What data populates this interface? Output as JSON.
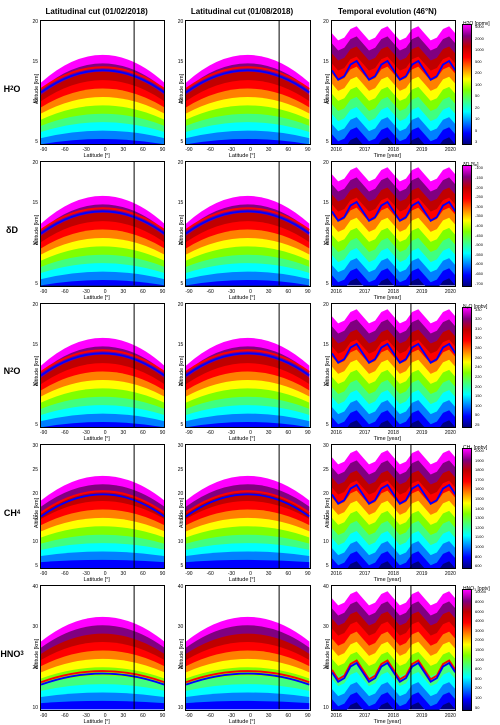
{
  "column_headers": [
    "Latitudinal cut (01/02/2018)",
    "Latitudinal cut (01/08/2018)",
    "Temporal evolution (46°N)"
  ],
  "row_labels": [
    "H₂O",
    "δD",
    "N₂O",
    "CH₄",
    "HNO₃"
  ],
  "colorbars": [
    {
      "label": "H2O [ppmv]",
      "ticks": [
        "4000",
        "2000",
        "1000",
        "500",
        "200",
        "100",
        "50",
        "20",
        "10",
        "5",
        "3"
      ]
    },
    {
      "label": "δD [‰]",
      "ticks": [
        "-100",
        "-150",
        "-200",
        "-250",
        "-300",
        "-350",
        "-400",
        "-450",
        "-500",
        "-550",
        "-600",
        "-650",
        "-700"
      ]
    },
    {
      "label": "N₂O [ppbv]",
      "ticks": [
        "330",
        "320",
        "310",
        "300",
        "280",
        "260",
        "240",
        "220",
        "200",
        "150",
        "100",
        "50",
        "25"
      ]
    },
    {
      "label": "CH₄ [ppbv]",
      "ticks": [
        "2000",
        "1900",
        "1800",
        "1700",
        "1600",
        "1500",
        "1400",
        "1300",
        "1200",
        "1100",
        "1000",
        "800",
        "600"
      ]
    },
    {
      "label": "HNO₃ [pptv]",
      "ticks": [
        "10000",
        "8000",
        "6000",
        "4000",
        "3000",
        "2000",
        "1500",
        "1000",
        "800",
        "500",
        "200",
        "100",
        "50"
      ]
    }
  ],
  "axes": {
    "lat": {
      "ticks": [
        "-90",
        "-60",
        "-30",
        "0",
        "30",
        "60",
        "90"
      ],
      "label": "Latitude [°]"
    },
    "time": {
      "ticks": [
        "2016",
        "2017",
        "2018",
        "2019",
        "2020"
      ],
      "label": "Time [year]"
    },
    "alt": {
      "label": "Altitude [km]"
    },
    "alt_ranges": {
      "h2o": [
        "20",
        "15",
        "10",
        "5"
      ],
      "dd": [
        "20",
        "15",
        "10",
        "5"
      ],
      "n2o": [
        "20",
        "15",
        "10",
        "5"
      ],
      "ch4": [
        "30",
        "25",
        "20",
        "15",
        "10",
        "5"
      ],
      "hno3": [
        "40",
        "30",
        "20",
        "10"
      ]
    }
  },
  "tropo_colors": {
    "blue": "#0000ff",
    "red": "#ff0000"
  },
  "vline_pos_lat": 0.755,
  "vline_pos_time": [
    0.515,
    0.64
  ],
  "jet_stops": [
    "#000080",
    "#0000ff",
    "#0080ff",
    "#00ffff",
    "#40ff80",
    "#80ff00",
    "#ffff00",
    "#ff8000",
    "#ff0000",
    "#c00000",
    "#800080",
    "#ff00ff"
  ],
  "jet_stops_rev": [
    "#ff00ff",
    "#800080",
    "#c00000",
    "#ff0000",
    "#ff8000",
    "#ffff00",
    "#80ff00",
    "#40ff80",
    "#00ffff",
    "#0080ff",
    "#0000ff",
    "#000080"
  ]
}
